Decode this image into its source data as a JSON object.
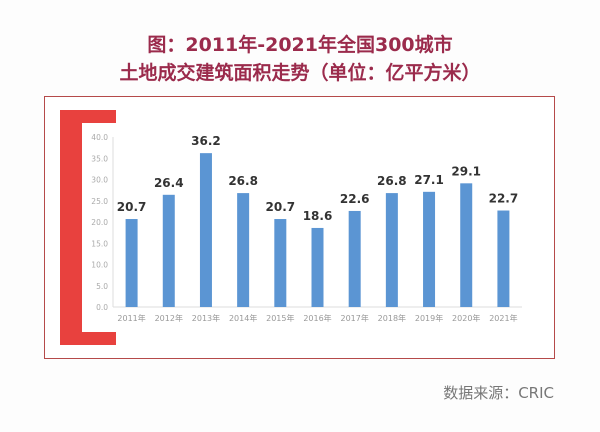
{
  "title_line1": "图：2011年-2021年全国300城市",
  "title_line2": "土地成交建筑面积走势（单位：亿平方米）",
  "source": "数据来源：CRIC",
  "colors": {
    "title": "#9b2b4c",
    "bar": "#5b95d3",
    "bracket": "#e8413e",
    "frame": "#b54a4a"
  },
  "chart_data": {
    "type": "bar",
    "categories": [
      "2011年",
      "2012年",
      "2013年",
      "2014年",
      "2015年",
      "2016年",
      "2017年",
      "2018年",
      "2019年",
      "2020年",
      "2021年"
    ],
    "values": [
      20.7,
      26.4,
      36.2,
      26.8,
      20.7,
      18.6,
      22.6,
      26.8,
      27.1,
      29.1,
      22.7
    ],
    "value_labels": [
      "20.7",
      "26.4",
      "36.2",
      "26.8",
      "20.7",
      "18.6",
      "22.6",
      "26.8",
      "27.1",
      "29.1",
      "22.7"
    ],
    "yticks": [
      "0.0",
      "5.0",
      "10.0",
      "15.0",
      "20.0",
      "25.0",
      "30.0",
      "35.0",
      "40.0"
    ],
    "ylim": [
      0,
      40
    ],
    "grid": false,
    "legend": "none"
  }
}
